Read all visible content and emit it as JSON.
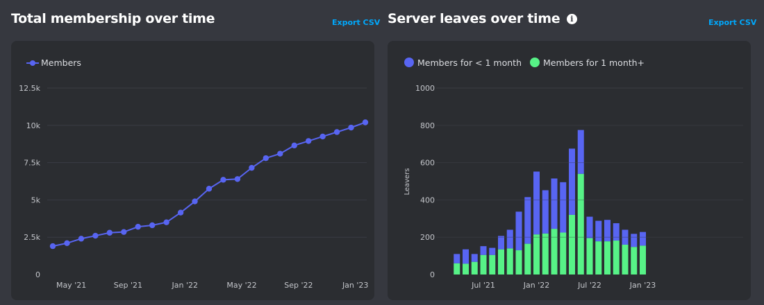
{
  "left_panel": {
    "title": "Total membership over time",
    "export_label": "Export CSV"
  },
  "right_panel": {
    "title": "Server leaves over time",
    "info_icon": "info-circle-icon",
    "export_label": "Export CSV"
  },
  "colors": {
    "blue": "#5865f2",
    "green": "#57f287"
  },
  "chart_data": [
    {
      "type": "line",
      "title": "Total membership over time",
      "xlabel": "",
      "ylabel": "",
      "legend": [
        "Members"
      ],
      "ylim": [
        0,
        12500
      ],
      "y_ticks": [
        0,
        2500,
        5000,
        7500,
        10000,
        12500
      ],
      "y_tick_labels": [
        "0",
        "2.5k",
        "5k",
        "7.5k",
        "10k",
        "12.5k"
      ],
      "x_tick_labels": [
        {
          "index": 1.3,
          "label": "May '21"
        },
        {
          "index": 5.3,
          "label": "Sep '21"
        },
        {
          "index": 9.3,
          "label": "Jan '22"
        },
        {
          "index": 13.3,
          "label": "May '22"
        },
        {
          "index": 17.3,
          "label": "Sep '22"
        },
        {
          "index": 21.3,
          "label": "Jan '23"
        }
      ],
      "series": [
        {
          "name": "Members",
          "values": [
            1900,
            2100,
            2400,
            2600,
            2800,
            2850,
            3200,
            3300,
            3500,
            4150,
            4900,
            5750,
            6350,
            6400,
            7150,
            7800,
            8100,
            8650,
            8950,
            9250,
            9550,
            9850,
            10200
          ]
        }
      ]
    },
    {
      "type": "bar",
      "stacked": true,
      "title": "Server leaves over time",
      "xlabel": "",
      "ylabel": "Leavers",
      "ylim": [
        0,
        1000
      ],
      "y_ticks": [
        0,
        200,
        400,
        600,
        800,
        1000
      ],
      "x_tick_labels": [
        {
          "index": 6,
          "label": "Jul '21"
        },
        {
          "index": 12,
          "label": "Jan '22"
        },
        {
          "index": 18,
          "label": "Jul '22"
        },
        {
          "index": 24,
          "label": "Jan '23"
        }
      ],
      "series": [
        {
          "name": "Members for 1 month+",
          "values": [
            60,
            58,
            68,
            105,
            105,
            135,
            140,
            130,
            165,
            215,
            220,
            245,
            225,
            320,
            540,
            195,
            178,
            178,
            182,
            160,
            148,
            155
          ]
        },
        {
          "name": "Members for < 1 month",
          "values": [
            50,
            77,
            42,
            47,
            38,
            72,
            100,
            207,
            250,
            337,
            232,
            270,
            270,
            355,
            235,
            115,
            110,
            115,
            93,
            80,
            70,
            73
          ]
        }
      ]
    }
  ]
}
